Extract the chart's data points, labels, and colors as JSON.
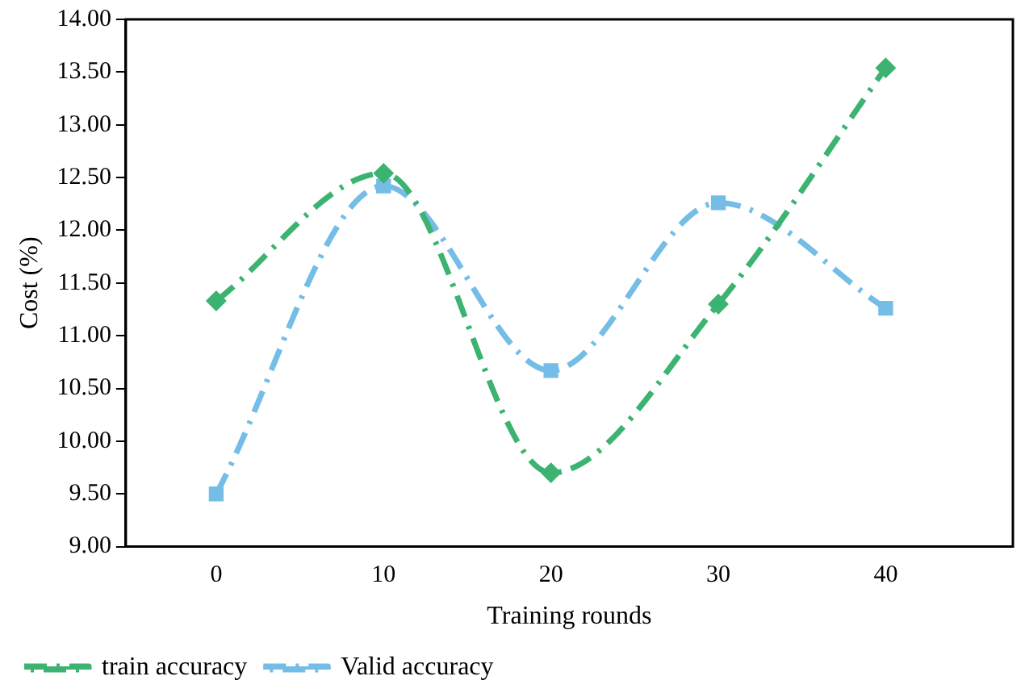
{
  "chart_data": {
    "type": "line",
    "xlabel": "Training rounds",
    "ylabel": "Cost (%)",
    "x": [
      0,
      10,
      20,
      30,
      40
    ],
    "series": [
      {
        "name": "train accuracy",
        "color": "#3cb371",
        "values": [
          11.33,
          12.54,
          9.7,
          11.3,
          13.54
        ],
        "marker": "diamond"
      },
      {
        "name": "Valid accuracy",
        "color": "#74bde6",
        "values": [
          9.5,
          12.42,
          10.67,
          12.26,
          11.26
        ],
        "marker": "square"
      }
    ],
    "xlim": [
      -5.4,
      47.6
    ],
    "xticks": [
      0,
      10,
      20,
      30,
      40
    ],
    "ylim": [
      9,
      14
    ],
    "yticks": [
      {
        "value": 9,
        "label": "9.00"
      },
      {
        "value": 9.5,
        "label": "9.50"
      },
      {
        "value": 10,
        "label": "10.00"
      },
      {
        "value": 10.5,
        "label": "10.50"
      },
      {
        "value": 11,
        "label": "11.00"
      },
      {
        "value": 11.5,
        "label": "11.50"
      },
      {
        "value": 12,
        "label": "12.00"
      },
      {
        "value": 12.5,
        "label": "12.50"
      },
      {
        "value": 13,
        "label": "13.00"
      },
      {
        "value": 13.5,
        "label": "13.50"
      },
      {
        "value": 14,
        "label": "14.00"
      }
    ],
    "grid": false,
    "legend": "bottom left",
    "line_style": "dashed"
  }
}
